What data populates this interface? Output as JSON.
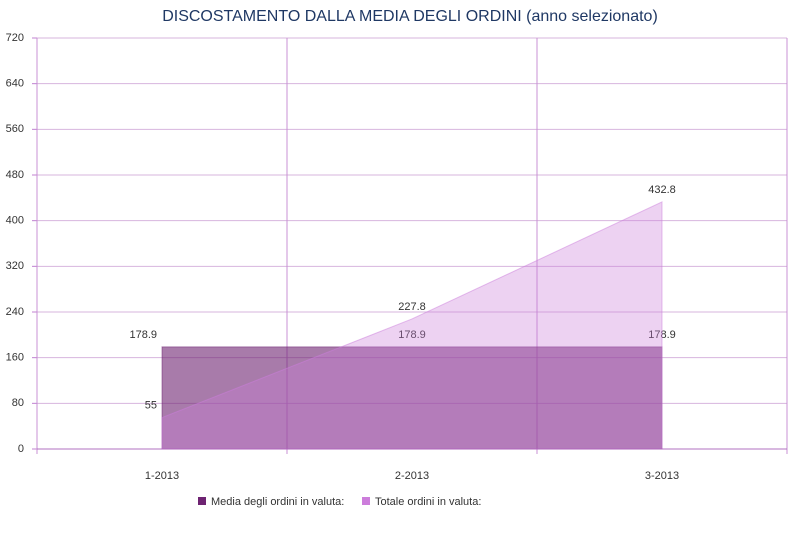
{
  "chart_data": {
    "type": "area",
    "title": "DISCOSTAMENTO DALLA MEDIA DEGLI ORDINI (anno selezionato)",
    "categories": [
      "1-2013",
      "2-2013",
      "3-2013"
    ],
    "series": [
      {
        "name": "Media degli ordini in valuta:",
        "color": "#6e2372",
        "values": [
          178.9,
          178.9,
          178.9
        ]
      },
      {
        "name": "Totale ordini in valuta:",
        "color": "#cc7ddb",
        "values": [
          55,
          227.8,
          432.8
        ]
      }
    ],
    "ylim": [
      0,
      720
    ],
    "yticks": [
      0,
      80,
      160,
      240,
      320,
      400,
      480,
      560,
      640,
      720
    ],
    "grid": true,
    "legend": "bottom"
  }
}
